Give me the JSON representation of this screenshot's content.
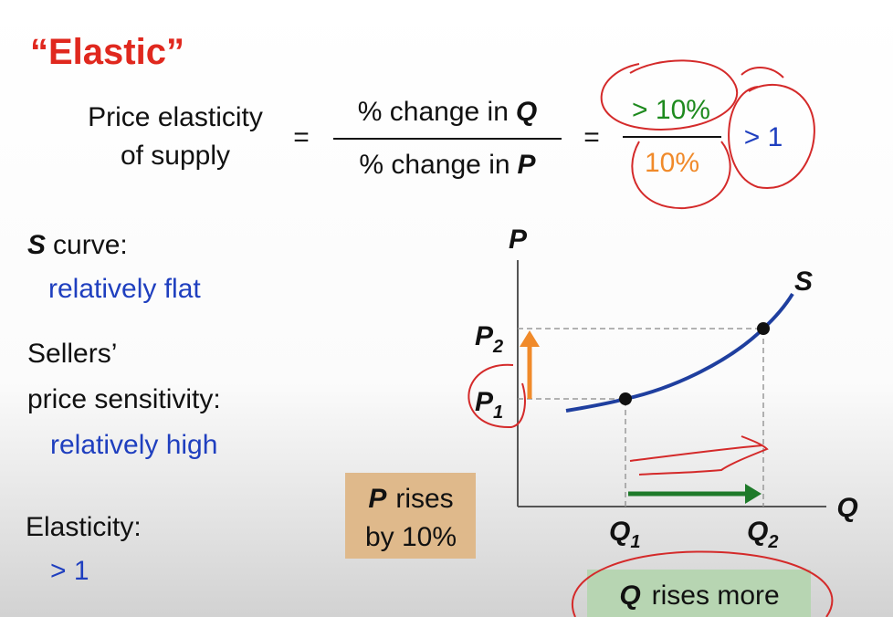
{
  "title": "“Elastic”",
  "formula": {
    "lhs": [
      "Price elasticity",
      "of supply"
    ],
    "eq1": "=",
    "numerator": {
      "text": "% change in",
      "var": "Q"
    },
    "denominator": {
      "text": "% change in",
      "var": "P"
    },
    "eq2": "=",
    "example_numerator": "> 10%",
    "example_denominator": "10%",
    "result": "> 1"
  },
  "left": {
    "curve": {
      "var": "S",
      "text": "curve:"
    },
    "curve_desc": "relatively flat",
    "sensitivity": [
      "Sellers’",
      "price sensitivity:"
    ],
    "sensitivity_desc": "relatively high",
    "elasticity": "Elasticity:",
    "elasticity_value": "> 1"
  },
  "graph": {
    "y_axis": "P",
    "x_axis": "Q",
    "curve_label": "S",
    "p_labels": [
      {
        "var": "P",
        "sub": "2"
      },
      {
        "var": "P",
        "sub": "1"
      }
    ],
    "q_labels": [
      {
        "var": "Q",
        "sub": "1"
      },
      {
        "var": "Q",
        "sub": "2"
      }
    ]
  },
  "boxes": [
    {
      "var": "P",
      "text": "rises",
      "line2": "by 10%"
    },
    {
      "var": "Q",
      "text": "rises more"
    }
  ]
}
